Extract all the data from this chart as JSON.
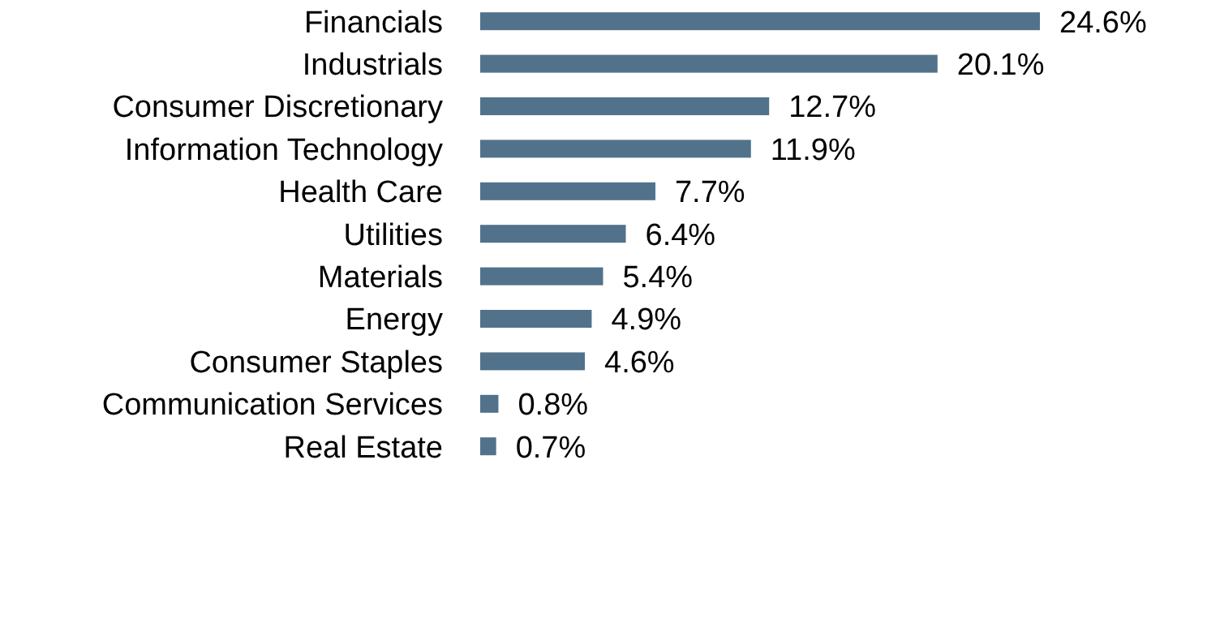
{
  "chart_data": {
    "type": "bar",
    "orientation": "horizontal",
    "categories": [
      "Financials",
      "Industrials",
      "Consumer Discretionary",
      "Information Technology",
      "Health Care",
      "Utilities",
      "Materials",
      "Energy",
      "Consumer Staples",
      "Communication Services",
      "Real Estate"
    ],
    "values": [
      24.6,
      20.1,
      12.7,
      11.9,
      7.7,
      6.4,
      5.4,
      4.9,
      4.6,
      0.8,
      0.7
    ],
    "value_labels": [
      "24.6%",
      "20.1%",
      "12.7%",
      "11.9%",
      "7.7%",
      "6.4%",
      "5.4%",
      "4.9%",
      "4.6%",
      "0.8%",
      "0.7%"
    ],
    "color": "#51728a"
  }
}
